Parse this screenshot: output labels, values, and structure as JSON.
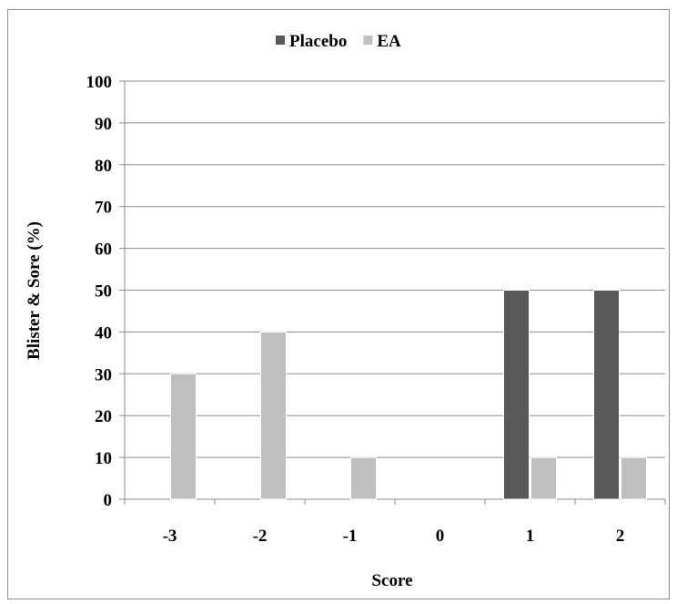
{
  "chart_data": {
    "type": "bar",
    "title": "",
    "xlabel": "Score",
    "ylabel": "Blister & Sore (%)",
    "categories": [
      "-3",
      "-2",
      "-1",
      "0",
      "1",
      "2"
    ],
    "series": [
      {
        "name": "Placebo",
        "color": "#595959",
        "values": [
          0,
          0,
          0,
          0,
          50,
          50
        ]
      },
      {
        "name": "EA",
        "color": "#bfbfbf",
        "values": [
          30,
          40,
          10,
          0,
          10,
          10
        ]
      }
    ],
    "ylim": [
      0,
      100
    ],
    "yticks": [
      "0",
      "10",
      "20",
      "30",
      "40",
      "50",
      "60",
      "70",
      "80",
      "90",
      "100"
    ],
    "grid": true,
    "legend_position": "top-center"
  }
}
